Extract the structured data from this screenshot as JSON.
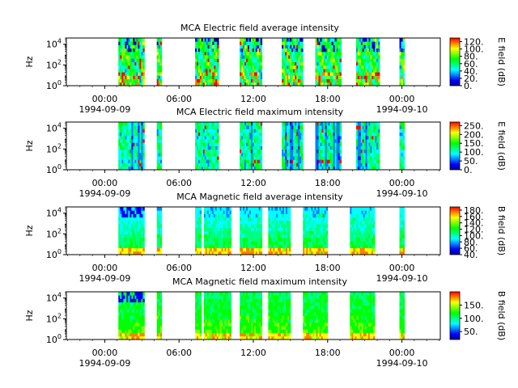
{
  "page": {
    "background": "#ffffff"
  },
  "colormap": [
    "#00008f",
    "#0000ff",
    "#0080ff",
    "#00ffff",
    "#00ff80",
    "#00ff00",
    "#80ff00",
    "#ffff00",
    "#ff8000",
    "#ff0000"
  ],
  "chart_data": [
    {
      "type": "heatmap",
      "title": "MCA  Electric field average intensity",
      "ylabel": "Hz",
      "y_scale": "log",
      "ylim": [
        1,
        40000
      ],
      "y_ticks": [
        "10^0",
        "10^2",
        "10^4"
      ],
      "x_ticks": [
        {
          "time": "00:00",
          "date": "1994-09-09"
        },
        {
          "time": "06:00",
          "date": ""
        },
        {
          "time": "12:00",
          "date": ""
        },
        {
          "time": "18:00",
          "date": ""
        },
        {
          "time": "00:00",
          "date": "1994-09-10"
        }
      ],
      "x_range_hours": [
        -3.1,
        27.1
      ],
      "colorbar_label": "E field (dB)",
      "colorbar_range": [
        0,
        130
      ],
      "colorbar_ticks": [
        "0.",
        "20.",
        "40.",
        "60.",
        "80.",
        "100.",
        "120."
      ],
      "data_intervals_hours": [
        [
          1.1,
          1.5
        ],
        [
          1.5,
          3.2
        ],
        [
          4.2,
          4.6
        ],
        [
          7.3,
          9.2
        ],
        [
          10.9,
          12.7
        ],
        [
          14.3,
          16.0
        ],
        [
          17.0,
          19.1
        ],
        [
          20.3,
          22.2
        ],
        [
          23.8,
          24.2
        ]
      ],
      "intensity_profile": "mostly green-cyan, yellow-red bursts at low frequencies, blue patches at high frequencies"
    },
    {
      "type": "heatmap",
      "title": "MCA  Electric field maximum intensity",
      "ylabel": "Hz",
      "y_scale": "log",
      "ylim": [
        1,
        40000
      ],
      "y_ticks": [
        "10^0",
        "10^2",
        "10^4"
      ],
      "x_ticks": [
        {
          "time": "00:00",
          "date": "1994-09-09"
        },
        {
          "time": "06:00",
          "date": ""
        },
        {
          "time": "12:00",
          "date": ""
        },
        {
          "time": "18:00",
          "date": ""
        },
        {
          "time": "00:00",
          "date": "1994-09-10"
        }
      ],
      "x_range_hours": [
        -3.1,
        27.1
      ],
      "colorbar_label": "E field (dB)",
      "colorbar_range": [
        0,
        270
      ],
      "colorbar_ticks": [
        "0.",
        "50.",
        "100.",
        "150.",
        "200.",
        "250."
      ],
      "data_intervals_hours": [
        [
          1.1,
          1.5
        ],
        [
          1.5,
          3.2
        ],
        [
          4.2,
          4.6
        ],
        [
          7.3,
          9.2
        ],
        [
          10.9,
          12.7
        ],
        [
          14.3,
          16.0
        ],
        [
          17.0,
          19.1
        ],
        [
          20.3,
          22.2
        ],
        [
          23.8,
          24.2
        ]
      ],
      "intensity_profile": "mostly cyan-green with blue stripes, few red spots"
    },
    {
      "type": "heatmap",
      "title": "MCA  Magnetic field average intensity",
      "ylabel": "Hz",
      "y_scale": "log",
      "ylim": [
        1,
        40000
      ],
      "y_ticks": [
        "10^0",
        "10^2",
        "10^4"
      ],
      "x_ticks": [
        {
          "time": "00:00",
          "date": "1994-09-09"
        },
        {
          "time": "06:00",
          "date": ""
        },
        {
          "time": "12:00",
          "date": ""
        },
        {
          "time": "18:00",
          "date": ""
        },
        {
          "time": "00:00",
          "date": "1994-09-10"
        }
      ],
      "x_range_hours": [
        -3.1,
        27.1
      ],
      "colorbar_label": "B field (dB)",
      "colorbar_range": [
        40,
        190
      ],
      "colorbar_ticks": [
        "40.",
        "60.",
        "80.",
        "100.",
        "120.",
        "140.",
        "160.",
        "180."
      ],
      "data_intervals_hours": [
        [
          1.1,
          1.5
        ],
        [
          1.5,
          3.2
        ],
        [
          4.2,
          4.6
        ],
        [
          7.3,
          7.8
        ],
        [
          8.0,
          10.2
        ],
        [
          10.9,
          12.7
        ],
        [
          13.2,
          15.0
        ],
        [
          16.0,
          18.0
        ],
        [
          19.8,
          21.8
        ],
        [
          23.8,
          24.2
        ]
      ],
      "intensity_profile": "cyan at high frequencies, green mid, yellow-orange at lowest frequencies"
    },
    {
      "type": "heatmap",
      "title": "MCA  Magnetic field maximum intensity",
      "ylabel": "Hz",
      "y_scale": "log",
      "ylim": [
        1,
        40000
      ],
      "y_ticks": [
        "10^0",
        "10^2",
        "10^4"
      ],
      "x_ticks": [
        {
          "time": "00:00",
          "date": "1994-09-09"
        },
        {
          "time": "06:00",
          "date": ""
        },
        {
          "time": "12:00",
          "date": ""
        },
        {
          "time": "18:00",
          "date": ""
        },
        {
          "time": "00:00",
          "date": "1994-09-10"
        }
      ],
      "x_range_hours": [
        -3.1,
        27.1
      ],
      "colorbar_label": "B field (dB)",
      "colorbar_range": [
        20,
        200
      ],
      "colorbar_ticks": [
        "50.",
        "100.",
        "150."
      ],
      "data_intervals_hours": [
        [
          1.1,
          1.5
        ],
        [
          1.5,
          3.2
        ],
        [
          4.2,
          4.6
        ],
        [
          7.3,
          7.8
        ],
        [
          8.0,
          10.2
        ],
        [
          10.9,
          12.7
        ],
        [
          13.2,
          15.0
        ],
        [
          16.0,
          18.0
        ],
        [
          19.8,
          21.8
        ],
        [
          23.8,
          24.2
        ]
      ],
      "intensity_profile": "green dominant, yellow at low frequencies, blue stripes at top in early segments"
    }
  ]
}
